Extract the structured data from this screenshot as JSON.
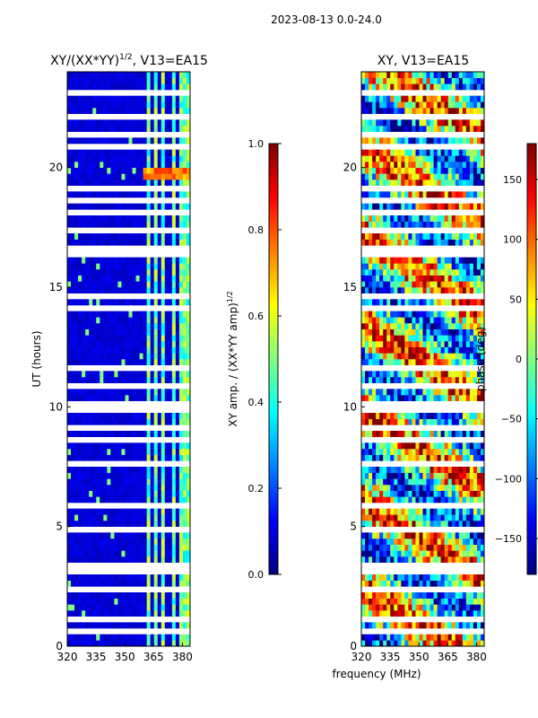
{
  "suptitle": "2023-08-13 0.0-24.0",
  "xlabel_shared": "frequency (MHz)",
  "chart_data": [
    {
      "type": "heatmap",
      "title": "XY/(XX*YY)",
      "title_sup": "1/2",
      "title_suffix": ", V13=EA15",
      "ylabel": "UT (hours)",
      "x_ticks": [
        320,
        335,
        350,
        365,
        380
      ],
      "y_ticks": [
        0,
        5,
        10,
        15,
        20
      ],
      "xlim": [
        320,
        384
      ],
      "ylim": [
        0,
        24
      ],
      "colorbar": {
        "label": "XY amp. / (XX*YY amp)",
        "label_sup": "1/2",
        "range": [
          0.0,
          1.0
        ],
        "ticks": [
          "0.0",
          "0.2",
          "0.4",
          "0.6",
          "0.8",
          "1.0"
        ],
        "colormap": "jet"
      },
      "bright_channels_mhz": [
        362,
        366,
        370,
        375,
        379,
        382
      ],
      "hot_spot_ut": 19.8
    },
    {
      "type": "heatmap",
      "title": "XY, V13=EA15",
      "ylabel": "phase (deg)",
      "x_ticks": [
        320,
        335,
        350,
        365,
        380
      ],
      "y_ticks": [
        0,
        5,
        10,
        15,
        20
      ],
      "xlim": [
        320,
        384
      ],
      "ylim": [
        0,
        24
      ],
      "colorbar": {
        "label": "phase (deg)",
        "range": [
          -180,
          180
        ],
        "ticks": [
          "−150",
          "−100",
          "−50",
          "0",
          "50",
          "100",
          "150"
        ],
        "colormap": "jet"
      }
    }
  ]
}
